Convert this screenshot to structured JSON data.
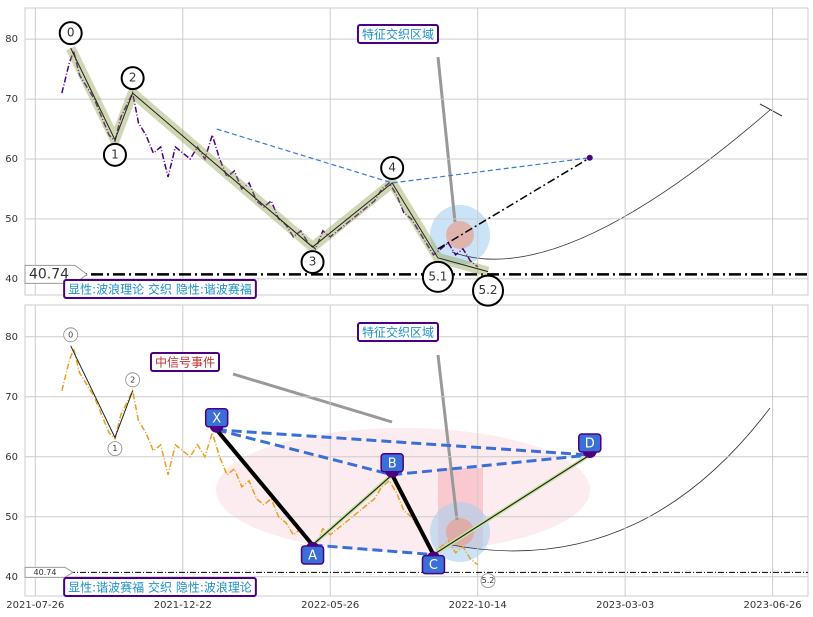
{
  "chart_data": [
    {
      "type": "line",
      "x": [
        18,
        23,
        26,
        30,
        35,
        40,
        45,
        50,
        54,
        58,
        62,
        66,
        70,
        75,
        80,
        85,
        90,
        95,
        100,
        105,
        110,
        115,
        120,
        125,
        130,
        135,
        140,
        145,
        150,
        155,
        160,
        165,
        170,
        175,
        180,
        185,
        190,
        195,
        200,
        205,
        210,
        215,
        220,
        225,
        230,
        235,
        240,
        245,
        250,
        255,
        260,
        265,
        270,
        275,
        280,
        285,
        290,
        295,
        300
      ],
      "series": [
        {
          "color": "#4b0082",
          "values": [
            71,
            76,
            78,
            74,
            72,
            70,
            67,
            64,
            63,
            67,
            69,
            71,
            66,
            64,
            61,
            62,
            57,
            62,
            61,
            60,
            62,
            60,
            64,
            60,
            57,
            58,
            55,
            56,
            53,
            52,
            53,
            50,
            49,
            47,
            48,
            46,
            45,
            48,
            47,
            48,
            49,
            50,
            51,
            52,
            53,
            55,
            56,
            54,
            51,
            50,
            48,
            46,
            44,
            45,
            46,
            44,
            45,
            43,
            42
          ]
        }
      ],
      "xlim": [
        -7,
        524
      ],
      "ylim": [
        37.3,
        85.2
      ],
      "yticks": [
        40,
        50,
        60,
        70,
        80
      ],
      "grid": true,
      "level": 40.74,
      "wave": {
        "labels": [
          "0",
          "1",
          "2",
          "3",
          "4",
          "5.1",
          "5.2"
        ],
        "x": [
          24,
          54,
          66,
          188,
          242,
          273,
          307
        ],
        "values": [
          78.5,
          63.2,
          71,
          45.3,
          56,
          43.5,
          41.2
        ]
      },
      "projection": {
        "x": [
          123,
          242,
          376
        ],
        "values": [
          65,
          56,
          60.2
        ]
      },
      "signal": {
        "x": [
          273,
          376
        ],
        "values": [
          45,
          60.2
        ]
      },
      "annotations": [
        "特征交织区域",
        "显性:波浪理论 交织 隐性:谐波赛福"
      ]
    },
    {
      "type": "line",
      "x": [
        18,
        23,
        26,
        30,
        35,
        40,
        45,
        50,
        54,
        58,
        62,
        66,
        70,
        75,
        80,
        85,
        90,
        95,
        100,
        105,
        110,
        115,
        120,
        125,
        130,
        135,
        140,
        145,
        150,
        155,
        160,
        165,
        170,
        175,
        180,
        185,
        190,
        195,
        200,
        205,
        210,
        215,
        220,
        225,
        230,
        235,
        240,
        245,
        250,
        255,
        260,
        265,
        270,
        275,
        280,
        285,
        290,
        295,
        300
      ],
      "series": [
        {
          "color": "#e8a020",
          "values": [
            71,
            76,
            78,
            74,
            72,
            70,
            67,
            64,
            63,
            67,
            69,
            71,
            66,
            64,
            61,
            62,
            57,
            62,
            61,
            60,
            62,
            60,
            64,
            60,
            57,
            58,
            55,
            56,
            53,
            52,
            53,
            50,
            49,
            47,
            48,
            46,
            45,
            48,
            47,
            48,
            49,
            50,
            51,
            52,
            53,
            55,
            56,
            54,
            51,
            50,
            48,
            46,
            44,
            45,
            46,
            44,
            45,
            43,
            42
          ]
        }
      ],
      "xlim": [
        -7,
        524
      ],
      "ylim": [
        36.8,
        85.3
      ],
      "yticks": [
        40,
        50,
        60,
        70,
        80
      ],
      "grid": true,
      "xticks": [
        {
          "value": 0,
          "label": "2021-07-26"
        },
        {
          "value": 100,
          "label": "2021-12-22"
        },
        {
          "value": 200,
          "label": "2022-05-26"
        },
        {
          "value": 300,
          "label": "2022-10-14"
        },
        {
          "value": 400,
          "label": "2023-03-03"
        },
        {
          "value": 500,
          "label": "2023-06-26"
        }
      ],
      "level": 40.74,
      "wave": {
        "labels": [
          "0",
          "1",
          "2",
          "5.2"
        ],
        "x": [
          24,
          54,
          66,
          307
        ],
        "values": [
          78.5,
          63.2,
          71,
          41.2
        ]
      },
      "harmonic": {
        "labels": [
          "X",
          "A",
          "B",
          "C",
          "D"
        ],
        "x": [
          123,
          188,
          242,
          270,
          376
        ],
        "values": [
          64.5,
          45.3,
          57,
          43.7,
          60.3
        ]
      },
      "annotations": [
        "特征交织区域",
        "中信号事件",
        "显性:谐波赛福 交织 隐性:波浪理论"
      ]
    }
  ]
}
